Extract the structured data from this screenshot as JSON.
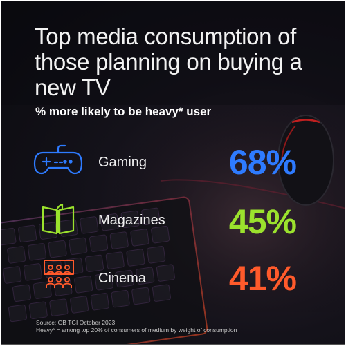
{
  "title": "Top media consumption of those planning on buying a new TV",
  "subtitle": "% more likely to be heavy* user",
  "colors": {
    "gaming": "#2e7bff",
    "magazines": "#9be22d",
    "cinema": "#ff5a2b"
  },
  "chart_data": {
    "type": "table",
    "title": "Top media consumption of those planning on buying a new TV",
    "subtitle": "% more likely to be heavy* user",
    "categories": [
      "Gaming",
      "Magazines",
      "Cinema"
    ],
    "values": [
      68,
      45,
      41
    ],
    "value_labels": [
      "68%",
      "45%",
      "41%"
    ],
    "icons": [
      "gamepad-icon",
      "book-icon",
      "cinema-audience-icon"
    ]
  },
  "rows": [
    {
      "label": "Gaming",
      "value": "68%"
    },
    {
      "label": "Magazines",
      "value": "45%"
    },
    {
      "label": "Cinema",
      "value": "41%"
    }
  ],
  "source": {
    "line1": "Source: GB TGI October 2023",
    "line2": "Heavy* = among top 20% of consumers of medium by weight of consumption"
  }
}
